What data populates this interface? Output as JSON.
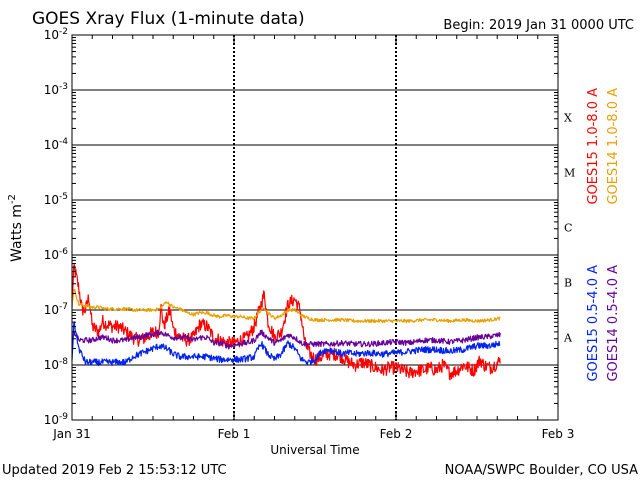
{
  "chart_data": {
    "type": "line",
    "title": "GOES Xray Flux (1-minute data)",
    "begin": "Begin:  2019 Jan 31 0000 UTC",
    "xlabel": "Universal Time",
    "ylabel": "Watts m",
    "ylabel_exp": "-2",
    "footer_left": "Updated 2019 Feb  2 15:53:12 UTC",
    "footer_right": "NOAA/SWPC Boulder, CO USA",
    "x_unit": "hours since 2019 Jan 31 0000 UTC",
    "xlim": [
      0,
      72
    ],
    "ylim_log10": [
      -9,
      -2
    ],
    "x_ticks": [
      {
        "at": 0,
        "label": "Jan 31"
      },
      {
        "at": 24,
        "label": "Feb 1"
      },
      {
        "at": 48,
        "label": "Feb 2"
      },
      {
        "at": 72,
        "label": "Feb 3"
      }
    ],
    "y_ticks": [
      {
        "exp": -9,
        "base": "10",
        "sup": "-9"
      },
      {
        "exp": -8,
        "base": "10",
        "sup": "-8"
      },
      {
        "exp": -7,
        "base": "10",
        "sup": "-7"
      },
      {
        "exp": -6,
        "base": "10",
        "sup": "-6"
      },
      {
        "exp": -5,
        "base": "10",
        "sup": "-5"
      },
      {
        "exp": -4,
        "base": "10",
        "sup": "-4"
      },
      {
        "exp": -3,
        "base": "10",
        "sup": "-3"
      },
      {
        "exp": -2,
        "base": "10",
        "sup": "-2"
      }
    ],
    "flare_classes": [
      {
        "label": "A",
        "exp": -7.5
      },
      {
        "label": "B",
        "exp": -6.5
      },
      {
        "label": "C",
        "exp": -5.5
      },
      {
        "label": "M",
        "exp": -4.5
      },
      {
        "label": "X",
        "exp": -3.5
      }
    ],
    "legend": [
      {
        "label": "GOES15 1.0-8.0 A",
        "color": "#ff0000"
      },
      {
        "label": "GOES14 1.0-8.0 A",
        "color": "#e8a000"
      },
      {
        "label": "GOES15 0.5-4.0 A",
        "color": "#0022ee"
      },
      {
        "label": "GOES14 0.5-4.0 A",
        "color": "#660099"
      }
    ],
    "series": [
      {
        "name": "GOES15 1.0-8.0 A",
        "color": "#ff0000",
        "noise": 0.12,
        "points": [
          [
            0,
            -6.9
          ],
          [
            0.3,
            -6.2
          ],
          [
            1,
            -6.6
          ],
          [
            1.5,
            -7.0
          ],
          [
            2,
            -7.0
          ],
          [
            2.5,
            -6.75
          ],
          [
            3,
            -7.3
          ],
          [
            4,
            -7.4
          ],
          [
            4.5,
            -7.2
          ],
          [
            5,
            -7.25
          ],
          [
            6,
            -7.3
          ],
          [
            7,
            -7.3
          ],
          [
            8,
            -7.4
          ],
          [
            9,
            -7.5
          ],
          [
            10,
            -7.55
          ],
          [
            11,
            -7.5
          ],
          [
            12,
            -7.4
          ],
          [
            12.8,
            -7.4
          ],
          [
            13.2,
            -6.95
          ],
          [
            13.6,
            -7.3
          ],
          [
            14.5,
            -7.0
          ],
          [
            15,
            -7.35
          ],
          [
            16,
            -7.5
          ],
          [
            17,
            -7.55
          ],
          [
            18,
            -7.5
          ],
          [
            19,
            -7.25
          ],
          [
            20,
            -7.3
          ],
          [
            21,
            -7.5
          ],
          [
            22,
            -7.55
          ],
          [
            23,
            -7.6
          ],
          [
            24,
            -7.6
          ],
          [
            25,
            -7.55
          ],
          [
            26,
            -7.5
          ],
          [
            27,
            -7.3
          ],
          [
            28,
            -6.9
          ],
          [
            28.5,
            -6.7
          ],
          [
            29,
            -7.2
          ],
          [
            30,
            -7.5
          ],
          [
            31,
            -7.4
          ],
          [
            32,
            -6.9
          ],
          [
            33,
            -6.8
          ],
          [
            33.8,
            -7.0
          ],
          [
            34.5,
            -7.6
          ],
          [
            35,
            -7.75
          ],
          [
            36,
            -7.9
          ],
          [
            37,
            -7.85
          ],
          [
            38,
            -7.8
          ],
          [
            39,
            -7.8
          ],
          [
            40,
            -7.85
          ],
          [
            41,
            -7.95
          ],
          [
            42,
            -8.0
          ],
          [
            43,
            -7.95
          ],
          [
            44,
            -8.0
          ],
          [
            45,
            -8.05
          ],
          [
            46,
            -8.1
          ],
          [
            47,
            -8.05
          ],
          [
            48,
            -8.05
          ],
          [
            49,
            -8.1
          ],
          [
            50,
            -8.15
          ],
          [
            51,
            -8.1
          ],
          [
            52,
            -8.1
          ],
          [
            53,
            -8.05
          ],
          [
            54,
            -8.1
          ],
          [
            55,
            -8.0
          ],
          [
            56,
            -8.15
          ],
          [
            57,
            -8.1
          ],
          [
            58,
            -8.0
          ],
          [
            59.5,
            -8.1
          ],
          [
            60.5,
            -7.9
          ],
          [
            61,
            -8.0
          ],
          [
            62,
            -8.05
          ],
          [
            63.2,
            -7.95
          ],
          [
            63.5,
            -7.9
          ]
        ]
      },
      {
        "name": "GOES14 1.0-8.0 A",
        "color": "#e8a000",
        "noise": 0.03,
        "points": [
          [
            0,
            -6.95
          ],
          [
            0.3,
            -6.6
          ],
          [
            1,
            -6.9
          ],
          [
            2,
            -6.92
          ],
          [
            3,
            -6.95
          ],
          [
            4,
            -6.95
          ],
          [
            5,
            -6.98
          ],
          [
            6,
            -6.98
          ],
          [
            7,
            -6.98
          ],
          [
            8,
            -6.98
          ],
          [
            9,
            -7.0
          ],
          [
            10,
            -7.0
          ],
          [
            11,
            -7.0
          ],
          [
            12,
            -7.0
          ],
          [
            13,
            -6.98
          ],
          [
            14,
            -6.85
          ],
          [
            15,
            -6.95
          ],
          [
            16,
            -6.98
          ],
          [
            17,
            -7.05
          ],
          [
            18,
            -7.08
          ],
          [
            19,
            -7.05
          ],
          [
            20,
            -7.05
          ],
          [
            21,
            -7.1
          ],
          [
            22,
            -7.12
          ],
          [
            23,
            -7.1
          ],
          [
            24,
            -7.12
          ],
          [
            25,
            -7.12
          ],
          [
            26,
            -7.15
          ],
          [
            27,
            -7.15
          ],
          [
            28,
            -7.0
          ],
          [
            28.5,
            -6.95
          ],
          [
            29,
            -7.05
          ],
          [
            30,
            -7.15
          ],
          [
            31,
            -7.1
          ],
          [
            32,
            -7.0
          ],
          [
            33,
            -7.0
          ],
          [
            34,
            -7.1
          ],
          [
            35,
            -7.15
          ],
          [
            36,
            -7.18
          ],
          [
            38,
            -7.18
          ],
          [
            40,
            -7.18
          ],
          [
            42,
            -7.2
          ],
          [
            44,
            -7.2
          ],
          [
            46,
            -7.2
          ],
          [
            48,
            -7.2
          ],
          [
            50,
            -7.2
          ],
          [
            52,
            -7.18
          ],
          [
            54,
            -7.18
          ],
          [
            56,
            -7.2
          ],
          [
            58,
            -7.18
          ],
          [
            60,
            -7.2
          ],
          [
            62,
            -7.18
          ],
          [
            63.5,
            -7.15
          ]
        ]
      },
      {
        "name": "GOES14 0.5-4.0 A",
        "color": "#660099",
        "noise": 0.05,
        "points": [
          [
            0,
            -7.65
          ],
          [
            0.3,
            -7.4
          ],
          [
            1,
            -7.55
          ],
          [
            2,
            -7.55
          ],
          [
            3,
            -7.55
          ],
          [
            4,
            -7.5
          ],
          [
            5,
            -7.5
          ],
          [
            6,
            -7.55
          ],
          [
            7,
            -7.55
          ],
          [
            8,
            -7.55
          ],
          [
            9,
            -7.5
          ],
          [
            10,
            -7.5
          ],
          [
            11,
            -7.45
          ],
          [
            12,
            -7.45
          ],
          [
            13,
            -7.4
          ],
          [
            14,
            -7.45
          ],
          [
            15,
            -7.5
          ],
          [
            16,
            -7.5
          ],
          [
            17,
            -7.5
          ],
          [
            18,
            -7.55
          ],
          [
            19,
            -7.5
          ],
          [
            20,
            -7.5
          ],
          [
            21,
            -7.6
          ],
          [
            22,
            -7.6
          ],
          [
            23,
            -7.65
          ],
          [
            24,
            -7.65
          ],
          [
            25,
            -7.6
          ],
          [
            26,
            -7.6
          ],
          [
            27,
            -7.55
          ],
          [
            28,
            -7.4
          ],
          [
            29,
            -7.5
          ],
          [
            30,
            -7.6
          ],
          [
            31,
            -7.55
          ],
          [
            32,
            -7.45
          ],
          [
            33,
            -7.5
          ],
          [
            34,
            -7.6
          ],
          [
            35,
            -7.62
          ],
          [
            36,
            -7.62
          ],
          [
            38,
            -7.62
          ],
          [
            40,
            -7.6
          ],
          [
            42,
            -7.62
          ],
          [
            44,
            -7.62
          ],
          [
            46,
            -7.6
          ],
          [
            48,
            -7.58
          ],
          [
            50,
            -7.6
          ],
          [
            52,
            -7.55
          ],
          [
            54,
            -7.55
          ],
          [
            56,
            -7.58
          ],
          [
            58,
            -7.55
          ],
          [
            60,
            -7.5
          ],
          [
            62,
            -7.48
          ],
          [
            63.5,
            -7.45
          ]
        ]
      },
      {
        "name": "GOES15 0.5-4.0 A",
        "color": "#0022ee",
        "noise": 0.06,
        "points": [
          [
            0,
            -7.9
          ],
          [
            0.3,
            -7.2
          ],
          [
            1,
            -7.7
          ],
          [
            2,
            -7.95
          ],
          [
            3,
            -7.95
          ],
          [
            4,
            -7.95
          ],
          [
            5,
            -7.95
          ],
          [
            6,
            -7.95
          ],
          [
            7,
            -7.95
          ],
          [
            8,
            -7.95
          ],
          [
            9,
            -7.85
          ],
          [
            10,
            -7.8
          ],
          [
            11,
            -7.75
          ],
          [
            12,
            -7.7
          ],
          [
            13,
            -7.65
          ],
          [
            14,
            -7.7
          ],
          [
            15,
            -7.8
          ],
          [
            16,
            -7.85
          ],
          [
            17,
            -7.85
          ],
          [
            18,
            -7.85
          ],
          [
            19,
            -7.85
          ],
          [
            20,
            -7.85
          ],
          [
            21,
            -7.88
          ],
          [
            22,
            -7.9
          ],
          [
            23,
            -7.9
          ],
          [
            24,
            -7.9
          ],
          [
            25,
            -7.9
          ],
          [
            26,
            -7.88
          ],
          [
            27,
            -7.85
          ],
          [
            28,
            -7.6
          ],
          [
            29,
            -7.8
          ],
          [
            30,
            -7.9
          ],
          [
            31,
            -7.8
          ],
          [
            32,
            -7.6
          ],
          [
            33,
            -7.7
          ],
          [
            34,
            -7.9
          ],
          [
            35,
            -7.95
          ],
          [
            36,
            -7.9
          ],
          [
            37,
            -7.75
          ],
          [
            38,
            -7.72
          ],
          [
            39,
            -7.75
          ],
          [
            40,
            -7.8
          ],
          [
            41,
            -7.78
          ],
          [
            42,
            -7.8
          ],
          [
            44,
            -7.78
          ],
          [
            46,
            -7.8
          ],
          [
            48,
            -7.78
          ],
          [
            50,
            -7.75
          ],
          [
            52,
            -7.72
          ],
          [
            54,
            -7.72
          ],
          [
            56,
            -7.75
          ],
          [
            58,
            -7.72
          ],
          [
            60,
            -7.65
          ],
          [
            62,
            -7.65
          ],
          [
            63.5,
            -7.6
          ]
        ]
      }
    ]
  }
}
